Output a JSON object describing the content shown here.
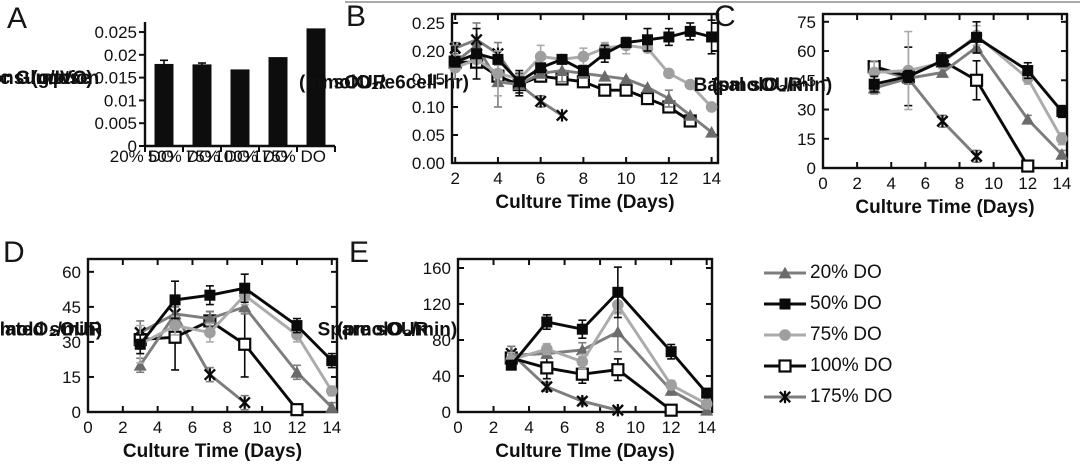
{
  "figure": {
    "background": "#ffffff",
    "top_border_color": "#a9a9a9",
    "series_styles": {
      "s20": {
        "label": "20% DO",
        "line_color": "#7d7d7d",
        "marker": "triangle",
        "marker_color": "#6b6b6b"
      },
      "s50": {
        "label": "50% DO",
        "line_color": "#0a0a0a",
        "marker": "square",
        "marker_color": "#0a0a0a"
      },
      "s75": {
        "label": "75% DO",
        "line_color": "#ababab",
        "marker": "circle",
        "marker_color": "#9f9f9f"
      },
      "s100": {
        "label": "100% DO",
        "line_color": "#0a0a0a",
        "marker": "square-open",
        "marker_color": "#ffffff"
      },
      "s175": {
        "label": "175% DO",
        "line_color": "#7d7d7d",
        "marker": "xstar",
        "marker_color": "#0a0a0a"
      }
    },
    "legend": {
      "items": [
        {
          "series": "s20",
          "label": "20% DO"
        },
        {
          "series": "s50",
          "label": "50% DO"
        },
        {
          "series": "s75",
          "label": "75% DO"
        },
        {
          "series": "s100",
          "label": "100% DO"
        },
        {
          "series": "s175",
          "label": "175% DO"
        }
      ]
    }
  },
  "chart_data": [
    {
      "panel_letter": "A",
      "type": "bar",
      "ylabel_lines": [
        "Specific Glucose",
        "Consumption",
        "(g/IVC)"
      ],
      "xlabel": "",
      "categories": [
        "20% DO",
        "50% DO",
        "75% DO",
        "100% DO",
        "175% DO"
      ],
      "values": [
        0.018,
        0.0179,
        0.0168,
        0.0195,
        0.0258
      ],
      "errors": [
        0.0008,
        0.0003,
        0,
        0,
        0
      ],
      "ylim": [
        0,
        0.0272
      ],
      "yticks": [
        0,
        0.005,
        0.01,
        0.015,
        0.02,
        0.025
      ],
      "ytick_labels": [
        "0",
        "0.005",
        "0.01",
        "0.015",
        "0.02",
        "0.025"
      ],
      "bar_color": "#0d0d0d"
    },
    {
      "panel_letter": "B",
      "type": "line",
      "ylabel_lines": [
        "sOUR",
        "(mmolO₂/e6cell-hr)"
      ],
      "xlabel": "Culture Time (Days)",
      "xlim": [
        1.85,
        14.3
      ],
      "xticks": [
        2,
        4,
        6,
        8,
        10,
        12,
        14
      ],
      "xtick_labels": [
        "2",
        "4",
        "6",
        "8",
        "10",
        "12",
        "14"
      ],
      "ylim": [
        0,
        0.266
      ],
      "yticks": [
        0,
        0.05,
        0.1,
        0.15,
        0.2,
        0.25
      ],
      "ytick_labels": [
        "0.00",
        "0.05",
        "0.10",
        "0.15",
        "0.20",
        "0.25"
      ],
      "series": [
        {
          "key": "s20",
          "name": "20% DO",
          "x": [
            2,
            3,
            4,
            5,
            6,
            7,
            8,
            9,
            10,
            11,
            12,
            13,
            14
          ],
          "y": [
            0.18,
            0.21,
            0.145,
            0.14,
            0.16,
            0.165,
            0.16,
            0.155,
            0.15,
            0.135,
            0.115,
            0.085,
            0.055
          ],
          "err": [
            0.03,
            0,
            0.045,
            0,
            0,
            0.02,
            0,
            0,
            0,
            0,
            0.015,
            0,
            0
          ]
        },
        {
          "key": "s50",
          "name": "50% DO",
          "x": [
            2,
            3,
            4,
            5,
            6,
            7,
            8,
            9,
            10,
            11,
            12,
            13,
            14
          ],
          "y": [
            0.18,
            0.195,
            0.185,
            0.145,
            0.17,
            0.185,
            0.165,
            0.195,
            0.215,
            0.22,
            0.225,
            0.235,
            0.225
          ],
          "err": [
            0,
            0.045,
            0,
            0.02,
            0,
            0,
            0,
            0.015,
            0,
            0.02,
            0.015,
            0.015,
            0.03
          ]
        },
        {
          "key": "s75",
          "name": "75% DO",
          "x": [
            2,
            3,
            4,
            5,
            6,
            7,
            8,
            9,
            10,
            11,
            12,
            13,
            14
          ],
          "y": [
            0.17,
            0.185,
            0.16,
            0.15,
            0.19,
            0.185,
            0.19,
            0.205,
            0.21,
            0.205,
            0.16,
            0.14,
            0.1
          ],
          "err": [
            0,
            0,
            0.04,
            0,
            0.02,
            0,
            0.015,
            0.01,
            0.015,
            0,
            0,
            0,
            0
          ]
        },
        {
          "key": "s100",
          "name": "100% DO",
          "x": [
            2,
            3,
            4,
            5,
            6,
            7,
            8,
            9,
            10,
            11,
            12,
            13
          ],
          "y": [
            0.18,
            0.18,
            0.155,
            0.14,
            0.155,
            0.15,
            0.145,
            0.13,
            0.13,
            0.115,
            0.1,
            0.075
          ],
          "err": [
            0,
            0,
            0,
            0.02,
            0.01,
            0,
            0,
            0,
            0,
            0,
            0,
            0
          ]
        },
        {
          "key": "s175",
          "name": "175% DO",
          "x": [
            2,
            3,
            4,
            5,
            6,
            7
          ],
          "y": [
            0.205,
            0.22,
            0.195,
            0.14,
            0.11,
            0.085
          ],
          "err": [
            0.01,
            0.03,
            0.02,
            0,
            0.01,
            0
          ]
        }
      ]
    },
    {
      "panel_letter": "C",
      "type": "line",
      "ylabel_lines": [
        "Basal sOUR",
        "(pmolO₂/min)"
      ],
      "xlabel": "Culture Time (Days)",
      "xlim": [
        0,
        14.3
      ],
      "xticks": [
        0,
        2,
        4,
        6,
        8,
        10,
        12,
        14
      ],
      "xtick_labels": [
        "0",
        "2",
        "4",
        "6",
        "8",
        "10",
        "12",
        "14"
      ],
      "ylim": [
        0,
        79
      ],
      "yticks": [
        0,
        15,
        30,
        45,
        60,
        75
      ],
      "ytick_labels": [
        "0",
        "15",
        "30",
        "45",
        "60",
        "75"
      ],
      "series": [
        {
          "key": "s20",
          "name": "20% DO",
          "x": [
            3,
            5,
            7,
            9,
            12,
            14
          ],
          "y": [
            41,
            46,
            49,
            62,
            25,
            7
          ],
          "err": [
            3,
            2,
            2,
            3,
            2,
            2
          ]
        },
        {
          "key": "s50",
          "name": "50% DO",
          "x": [
            3,
            5,
            7,
            9,
            12,
            14
          ],
          "y": [
            43,
            47,
            55,
            67,
            50,
            29
          ],
          "err": [
            4,
            3,
            3,
            8,
            4,
            3
          ]
        },
        {
          "key": "s75",
          "name": "75% DO",
          "x": [
            3,
            5,
            7,
            9,
            12,
            14
          ],
          "y": [
            49,
            50,
            54,
            68,
            46,
            15
          ],
          "err": [
            6,
            20,
            3,
            5,
            3,
            3
          ]
        },
        {
          "key": "s100",
          "name": "100% DO",
          "x": [
            3,
            5,
            7,
            9,
            12
          ],
          "y": [
            52,
            47,
            55,
            45,
            1
          ],
          "err": [
            3,
            15,
            4,
            10,
            2
          ]
        },
        {
          "key": "s175",
          "name": "175% DO",
          "x": [
            3,
            5,
            7,
            9
          ],
          "y": [
            51,
            46,
            24,
            6
          ],
          "err": [
            4,
            3,
            3,
            3
          ]
        }
      ]
    },
    {
      "panel_letter": "D",
      "type": "line",
      "ylabel_lines": [
        "ATP Related sOUR",
        "(pmolO₂/min)"
      ],
      "xlabel": "Culture Time (Days)",
      "xlim": [
        0,
        14.3
      ],
      "xticks": [
        0,
        2,
        4,
        6,
        8,
        10,
        12,
        14
      ],
      "xtick_labels": [
        "0",
        "2",
        "4",
        "6",
        "8",
        "10",
        "12",
        "14"
      ],
      "ylim": [
        0,
        65.5
      ],
      "yticks": [
        0,
        15,
        30,
        45,
        60
      ],
      "ytick_labels": [
        "0",
        "15",
        "30",
        "45",
        "60"
      ],
      "series": [
        {
          "key": "s20",
          "name": "20% DO",
          "x": [
            3,
            5,
            7,
            9,
            12,
            14
          ],
          "y": [
            20,
            42,
            40,
            45,
            17,
            2
          ],
          "err": [
            3,
            3,
            3,
            3,
            3,
            2
          ]
        },
        {
          "key": "s50",
          "name": "50% DO",
          "x": [
            3,
            5,
            7,
            9,
            12,
            14
          ],
          "y": [
            29,
            48,
            50,
            53,
            37,
            22
          ],
          "err": [
            4,
            8,
            4,
            6,
            3,
            3
          ]
        },
        {
          "key": "s75",
          "name": "75% DO",
          "x": [
            3,
            5,
            7,
            9,
            12,
            14
          ],
          "y": [
            29,
            37,
            34,
            50,
            33,
            9
          ],
          "err": [
            8,
            4,
            4,
            4,
            3,
            2
          ]
        },
        {
          "key": "s100",
          "name": "100% DO",
          "x": [
            3,
            5,
            7,
            9,
            12
          ],
          "y": [
            31,
            32,
            39,
            29,
            1
          ],
          "err": [
            3,
            14,
            4,
            14,
            2
          ]
        },
        {
          "key": "s175",
          "name": "175% DO",
          "x": [
            3,
            5,
            7,
            9
          ],
          "y": [
            34,
            42,
            16,
            4
          ],
          "err": [
            5,
            3,
            3,
            3
          ]
        }
      ]
    },
    {
      "panel_letter": "E",
      "type": "line",
      "ylabel_lines": [
        "Spare sOUR",
        "(pmolO₂/min)"
      ],
      "xlabel": "Culture TIme (Days)",
      "xlim": [
        0,
        14.3
      ],
      "xticks": [
        0,
        2,
        4,
        6,
        8,
        10,
        12,
        14
      ],
      "xtick_labels": [
        "0",
        "2",
        "4",
        "6",
        "8",
        "10",
        "12",
        "14"
      ],
      "ylim": [
        0,
        170
      ],
      "yticks": [
        0,
        40,
        80,
        120,
        160
      ],
      "ytick_labels": [
        "0",
        "40",
        "80",
        "120",
        "160"
      ],
      "series": [
        {
          "key": "s20",
          "name": "20% DO",
          "x": [
            3,
            5,
            7,
            9,
            12,
            14
          ],
          "y": [
            63,
            65,
            69,
            89,
            24,
            2
          ],
          "err": [
            10,
            5,
            8,
            22,
            5,
            3
          ]
        },
        {
          "key": "s50",
          "name": "50% DO",
          "x": [
            3,
            5,
            7,
            9,
            12,
            14
          ],
          "y": [
            52,
            100,
            92,
            133,
            67,
            21
          ],
          "err": [
            5,
            8,
            10,
            28,
            8,
            5
          ]
        },
        {
          "key": "s75",
          "name": "75% DO",
          "x": [
            3,
            5,
            7,
            9,
            12,
            14
          ],
          "y": [
            58,
            70,
            56,
            119,
            30,
            9
          ],
          "err": [
            8,
            6,
            8,
            10,
            5,
            4
          ]
        },
        {
          "key": "s100",
          "name": "100% DO",
          "x": [
            3,
            5,
            7,
            9,
            12
          ],
          "y": [
            60,
            49,
            42,
            47,
            2
          ],
          "err": [
            5,
            12,
            10,
            12,
            4
          ]
        },
        {
          "key": "s175",
          "name": "175% DO",
          "x": [
            3,
            5,
            7,
            9
          ],
          "y": [
            65,
            28,
            12,
            2
          ],
          "err": [
            8,
            5,
            4,
            3
          ]
        }
      ]
    }
  ]
}
